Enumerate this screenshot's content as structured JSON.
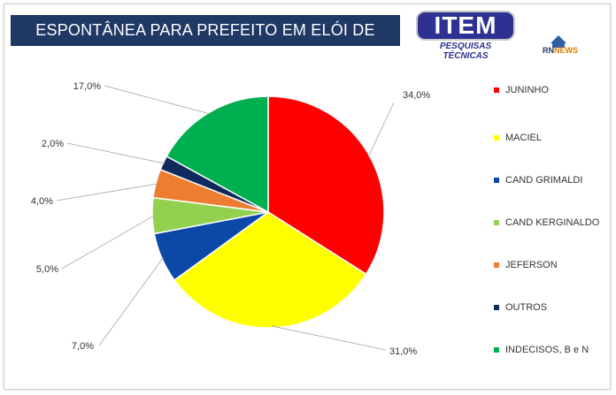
{
  "title": "ESPONTÂNEA PARA PREFEITO EM ELÓI DE SOUZA",
  "logo_item": {
    "text": "ITEM",
    "subtitle": "PESQUISAS TÉCNICAS"
  },
  "logo_rn": {
    "text_rn": "RN",
    "text_news": "NEWS"
  },
  "chart_data": {
    "type": "pie",
    "title": "ESPONTÂNEA PARA PREFEITO EM ELÓI DE SOUZA",
    "start_angle_deg": 0,
    "direction": "clockwise",
    "legend_position": "right",
    "slices": [
      {
        "name": "JUNINHO",
        "value": 34.0,
        "label": "34,0%",
        "color": "#ff0000"
      },
      {
        "name": "MACIEL",
        "value": 31.0,
        "label": "31,0%",
        "color": "#ffff00"
      },
      {
        "name": "CAND GRIMALDI",
        "value": 7.0,
        "label": "7,0%",
        "color": "#0b48a8"
      },
      {
        "name": "CAND KERGINALDO",
        "value": 5.0,
        "label": "5,0%",
        "color": "#92d050"
      },
      {
        "name": "JEFERSON",
        "value": 4.0,
        "label": "4,0%",
        "color": "#ed7d31"
      },
      {
        "name": "OUTROS",
        "value": 2.0,
        "label": "2,0%",
        "color": "#0f2a5c"
      },
      {
        "name": "INDECISOS, B e N",
        "value": 17.0,
        "label": "17,0%",
        "color": "#00b050"
      }
    ]
  }
}
